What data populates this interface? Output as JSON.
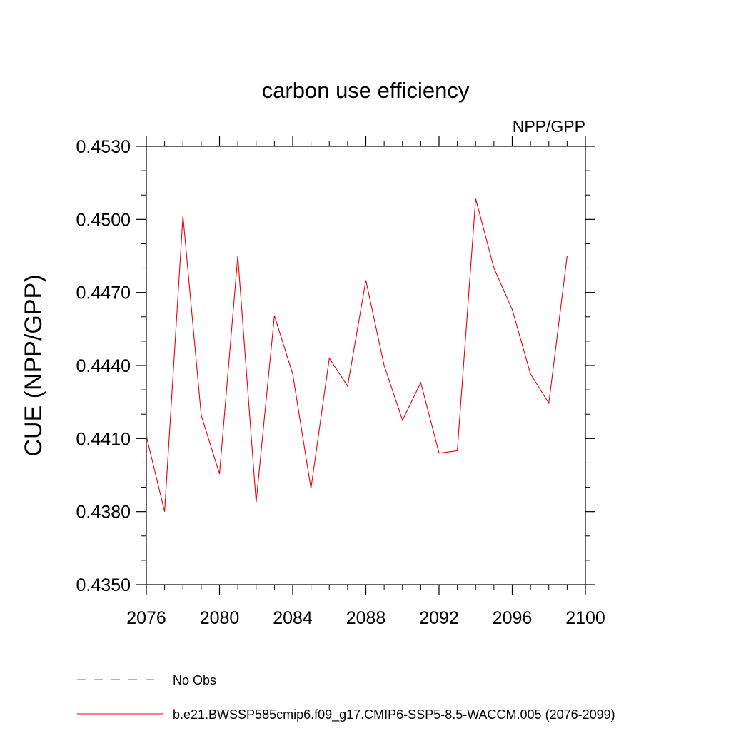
{
  "chart_data": {
    "type": "line",
    "title": "carbon use efficiency",
    "subtitle": "NPP/GPP",
    "xlabel": "",
    "ylabel": "CUE  (NPP/GPP)",
    "xlim": [
      2076,
      2100
    ],
    "ylim": [
      0.435,
      0.453
    ],
    "xticks": [
      2076,
      2080,
      2084,
      2088,
      2092,
      2096,
      2100
    ],
    "xtick_labels": [
      "2076",
      "2080",
      "2084",
      "2088",
      "2092",
      "2096",
      "2100"
    ],
    "yticks": [
      0.435,
      0.438,
      0.441,
      0.444,
      0.447,
      0.45,
      0.453
    ],
    "ytick_labels": [
      "0.4350",
      "0.4380",
      "0.4410",
      "0.4440",
      "0.4470",
      "0.4500",
      "0.4530"
    ],
    "x": [
      2076,
      2077,
      2078,
      2079,
      2080,
      2081,
      2082,
      2083,
      2084,
      2085,
      2086,
      2087,
      2088,
      2089,
      2090,
      2091,
      2092,
      2093,
      2094,
      2095,
      2096,
      2097,
      2098,
      2099
    ],
    "series": [
      {
        "name": "b.e21.BWSSP585cmip6.f09_g17.CMIP6-SSP5-8.5-WACCM.005 (2076-2099)",
        "color": "#e8000b",
        "style": "solid",
        "values": [
          0.4411,
          0.438,
          0.45015,
          0.44195,
          0.43955,
          0.4485,
          0.43838,
          0.44605,
          0.44365,
          0.43895,
          0.4443,
          0.44315,
          0.4475,
          0.444,
          0.44175,
          0.4433,
          0.4404,
          0.4405,
          0.45085,
          0.448,
          0.4463,
          0.44365,
          0.44245,
          0.4485
        ]
      }
    ],
    "legend": [
      {
        "label": "No Obs",
        "color": "#6a5acd",
        "style": "dashed"
      },
      {
        "label": "b.e21.BWSSP585cmip6.f09_g17.CMIP6-SSP5-8.5-WACCM.005 (2076-2099)",
        "color": "#e8000b",
        "style": "solid"
      }
    ],
    "legend_position": "bottom",
    "grid": false
  }
}
